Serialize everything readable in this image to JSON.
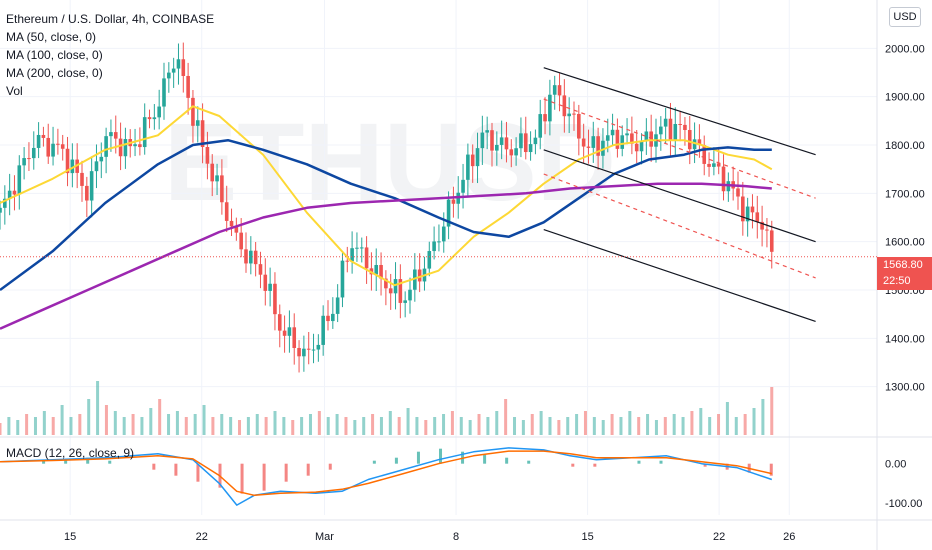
{
  "header": {
    "title": "Ethereum / U.S. Dollar, 4h, COINBASE",
    "indicators": [
      "MA (50, close, 0)",
      "MA (100, close, 0)",
      "MA (200, close, 0)",
      "Vol"
    ],
    "currency_button": "USD"
  },
  "price_badge": {
    "price": "1568.80",
    "countdown": "22:50",
    "color": "#ef5350"
  },
  "macd": {
    "label": "MACD (12, 26, close, 9)"
  },
  "colors": {
    "up": "#26a69a",
    "down": "#ef5350",
    "ma50": "#fdd835",
    "ma100": "#0d47a1",
    "ma200": "#9c27b0",
    "macd_line": "#2196f3",
    "signal_line": "#ff6d00",
    "channel": "#131722",
    "channel_dashed": "#ef5350"
  },
  "chart_data": [
    {
      "type": "line",
      "title": "Ethereum / U.S. Dollar, 4h, COINBASE",
      "x_ticks": [
        "15",
        "22",
        "Mar",
        "8",
        "15",
        "22",
        "26"
      ],
      "y_ticks": [
        "1300.00",
        "1400.00",
        "1500.00",
        "1600.00",
        "1700.00",
        "1800.00",
        "1900.00",
        "2000.00"
      ],
      "ylim": [
        1200,
        2100
      ],
      "x_index_range": [
        0,
        100
      ],
      "grid": true,
      "series": [
        {
          "name": "Price",
          "points": [
            [
              0,
              1660
            ],
            [
              4,
              1810
            ],
            [
              7,
              1790
            ],
            [
              10,
              1700
            ],
            [
              12,
              1820
            ],
            [
              15,
              1790
            ],
            [
              18,
              1880
            ],
            [
              20,
              1990
            ],
            [
              23,
              1800
            ],
            [
              26,
              1650
            ],
            [
              27,
              1600
            ],
            [
              30,
              1530
            ],
            [
              32,
              1420
            ],
            [
              35,
              1360
            ],
            [
              38,
              1460
            ],
            [
              40,
              1600
            ],
            [
              43,
              1530
            ],
            [
              46,
              1480
            ],
            [
              49,
              1570
            ],
            [
              52,
              1700
            ],
            [
              55,
              1820
            ],
            [
              58,
              1790
            ],
            [
              61,
              1810
            ],
            [
              63,
              1920
            ],
            [
              65,
              1860
            ],
            [
              67,
              1790
            ],
            [
              70,
              1820
            ],
            [
              73,
              1800
            ],
            [
              76,
              1840
            ],
            [
              78,
              1830
            ],
            [
              80,
              1780
            ],
            [
              83,
              1720
            ],
            [
              85,
              1660
            ],
            [
              87,
              1640
            ],
            [
              88,
              1568.8
            ]
          ]
        },
        {
          "name": "MA (50, close, 0)",
          "points": [
            [
              0,
              1680
            ],
            [
              6,
              1730
            ],
            [
              12,
              1790
            ],
            [
              18,
              1820
            ],
            [
              22,
              1880
            ],
            [
              25,
              1860
            ],
            [
              30,
              1780
            ],
            [
              35,
              1660
            ],
            [
              40,
              1560
            ],
            [
              45,
              1510
            ],
            [
              50,
              1540
            ],
            [
              54,
              1610
            ],
            [
              58,
              1660
            ],
            [
              62,
              1720
            ],
            [
              66,
              1770
            ],
            [
              70,
              1800
            ],
            [
              74,
              1810
            ],
            [
              78,
              1810
            ],
            [
              80,
              1800
            ],
            [
              83,
              1780
            ],
            [
              86,
              1770
            ],
            [
              88,
              1750
            ]
          ]
        },
        {
          "name": "MA (100, close, 0)",
          "points": [
            [
              0,
              1500
            ],
            [
              6,
              1580
            ],
            [
              12,
              1680
            ],
            [
              18,
              1760
            ],
            [
              22,
              1800
            ],
            [
              26,
              1810
            ],
            [
              30,
              1790
            ],
            [
              35,
              1760
            ],
            [
              40,
              1720
            ],
            [
              45,
              1690
            ],
            [
              50,
              1650
            ],
            [
              54,
              1620
            ],
            [
              58,
              1610
            ],
            [
              62,
              1640
            ],
            [
              66,
              1690
            ],
            [
              70,
              1740
            ],
            [
              74,
              1770
            ],
            [
              78,
              1780
            ],
            [
              80,
              1790
            ],
            [
              83,
              1795
            ],
            [
              86,
              1790
            ],
            [
              88,
              1790
            ]
          ]
        },
        {
          "name": "MA (200, close, 0)",
          "points": [
            [
              0,
              1420
            ],
            [
              5,
              1460
            ],
            [
              10,
              1500
            ],
            [
              15,
              1540
            ],
            [
              20,
              1580
            ],
            [
              25,
              1620
            ],
            [
              30,
              1650
            ],
            [
              35,
              1670
            ],
            [
              40,
              1680
            ],
            [
              45,
              1685
            ],
            [
              50,
              1690
            ],
            [
              55,
              1695
            ],
            [
              60,
              1700
            ],
            [
              65,
              1710
            ],
            [
              70,
              1715
            ],
            [
              75,
              1720
            ],
            [
              80,
              1720
            ],
            [
              85,
              1715
            ],
            [
              88,
              1710
            ]
          ]
        }
      ],
      "current_price": 1568.8
    },
    {
      "type": "bar",
      "title": "Vol",
      "x_index_range": [
        0,
        100
      ],
      "values_relative": [
        0.2,
        0.3,
        0.25,
        0.35,
        0.3,
        0.4,
        0.3,
        0.5,
        0.3,
        0.35,
        0.6,
        0.9,
        0.5,
        0.4,
        0.3,
        0.35,
        0.3,
        0.45,
        0.6,
        0.35,
        0.4,
        0.3,
        0.35,
        0.5,
        0.3,
        0.35,
        0.3,
        0.25,
        0.3,
        0.35,
        0.3,
        0.4,
        0.3,
        0.25,
        0.3,
        0.35,
        0.4,
        0.3,
        0.35,
        0.3,
        0.25,
        0.3,
        0.35,
        0.3,
        0.4,
        0.3,
        0.45,
        0.3,
        0.25,
        0.3,
        0.35,
        0.4,
        0.3,
        0.25,
        0.35,
        0.3,
        0.4,
        0.6,
        0.3,
        0.25,
        0.35,
        0.4,
        0.3,
        0.25,
        0.3,
        0.35,
        0.4,
        0.3,
        0.25,
        0.35,
        0.3,
        0.4,
        0.3,
        0.35,
        0.25,
        0.3,
        0.35,
        0.3,
        0.4,
        0.45,
        0.3,
        0.35,
        0.55,
        0.3,
        0.35,
        0.45,
        0.6,
        0.8
      ]
    },
    {
      "type": "line",
      "title": "MACD (12, 26, close, 9)",
      "y_ticks": [
        "0.00",
        "-100.00"
      ],
      "ylim": [
        -130,
        60
      ],
      "x_index_range": [
        0,
        100
      ],
      "series": [
        {
          "name": "MACD",
          "points": [
            [
              0,
              5
            ],
            [
              6,
              10
            ],
            [
              12,
              15
            ],
            [
              18,
              25
            ],
            [
              22,
              10
            ],
            [
              25,
              -50
            ],
            [
              27,
              -105
            ],
            [
              29,
              -80
            ],
            [
              32,
              -70
            ],
            [
              36,
              -75
            ],
            [
              39,
              -70
            ],
            [
              42,
              -40
            ],
            [
              46,
              -15
            ],
            [
              50,
              10
            ],
            [
              54,
              30
            ],
            [
              58,
              40
            ],
            [
              62,
              35
            ],
            [
              65,
              20
            ],
            [
              68,
              10
            ],
            [
              72,
              15
            ],
            [
              76,
              20
            ],
            [
              80,
              0
            ],
            [
              84,
              -10
            ],
            [
              86,
              -25
            ],
            [
              88,
              -40
            ]
          ]
        },
        {
          "name": "Signal",
          "points": [
            [
              0,
              5
            ],
            [
              6,
              8
            ],
            [
              12,
              12
            ],
            [
              18,
              20
            ],
            [
              22,
              12
            ],
            [
              25,
              -30
            ],
            [
              27,
              -70
            ],
            [
              29,
              -80
            ],
            [
              32,
              -75
            ],
            [
              36,
              -72
            ],
            [
              39,
              -65
            ],
            [
              42,
              -50
            ],
            [
              46,
              -25
            ],
            [
              50,
              0
            ],
            [
              54,
              20
            ],
            [
              58,
              32
            ],
            [
              62,
              32
            ],
            [
              65,
              25
            ],
            [
              68,
              15
            ],
            [
              72,
              15
            ],
            [
              76,
              15
            ],
            [
              80,
              5
            ],
            [
              84,
              -5
            ],
            [
              86,
              -15
            ],
            [
              88,
              -25
            ]
          ]
        },
        {
          "name": "Histogram",
          "values_relative": [
            0,
            0,
            0.05,
            0.08,
            0.1,
            0.05,
            0,
            -0.1,
            -0.2,
            -0.3,
            -0.4,
            -0.5,
            -0.45,
            -0.3,
            -0.2,
            -0.1,
            0,
            0.05,
            0.1,
            0.2,
            0.25,
            0.2,
            0.15,
            0.1,
            0.05,
            0,
            -0.05,
            -0.05,
            0,
            0.05,
            0.05,
            0,
            -0.05,
            -0.1,
            -0.15,
            -0.2
          ]
        }
      ]
    }
  ]
}
